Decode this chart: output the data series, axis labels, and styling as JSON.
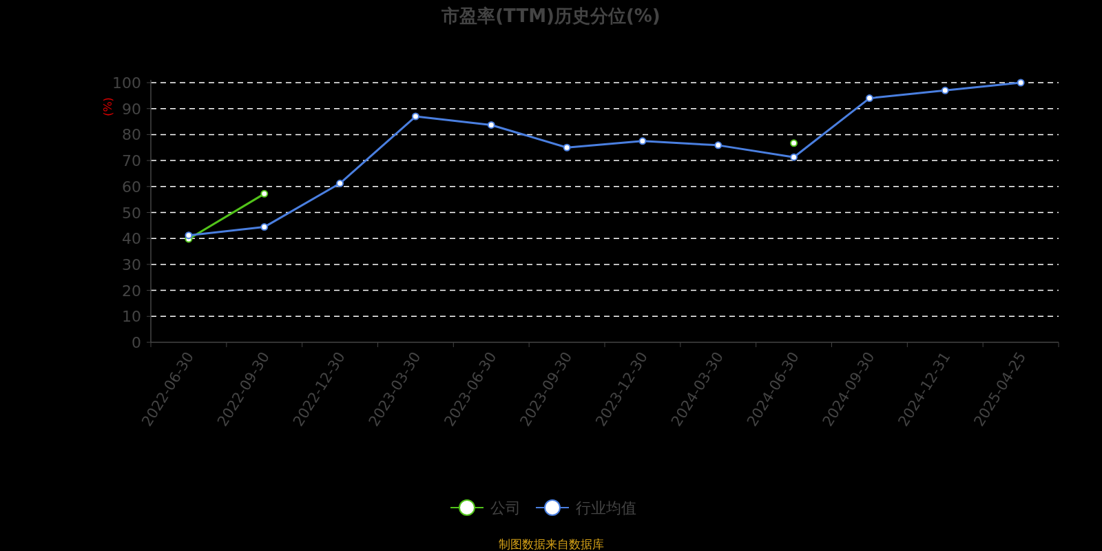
{
  "chart_data": {
    "type": "line",
    "title": "市盈率(TTM)历史分位(%)",
    "ylabel": "(%)",
    "categories": [
      "2022-06-30",
      "2022-09-30",
      "2022-12-30",
      "2023-03-30",
      "2023-06-30",
      "2023-09-30",
      "2023-12-30",
      "2024-03-30",
      "2024-06-30",
      "2024-09-30",
      "2024-12-31",
      "2025-04-25"
    ],
    "series": [
      {
        "name": "公司",
        "color": "#52c41a",
        "values": [
          39.8,
          57.2,
          null,
          null,
          null,
          null,
          null,
          null,
          76.7,
          null,
          null,
          null
        ]
      },
      {
        "name": "行业均值",
        "color": "#4a7fe0",
        "values": [
          41.2,
          44.4,
          61.2,
          87,
          83.7,
          75,
          77.5,
          75.9,
          71.3,
          94,
          97,
          100
        ]
      }
    ],
    "ylim": [
      0,
      100
    ],
    "yticks": [
      0,
      10,
      20,
      30,
      40,
      50,
      60,
      70,
      80,
      90,
      100
    ],
    "grid": "y",
    "legend": "bottom",
    "marker": "circle",
    "annotations": [
      "制图数据来自数据库"
    ]
  }
}
